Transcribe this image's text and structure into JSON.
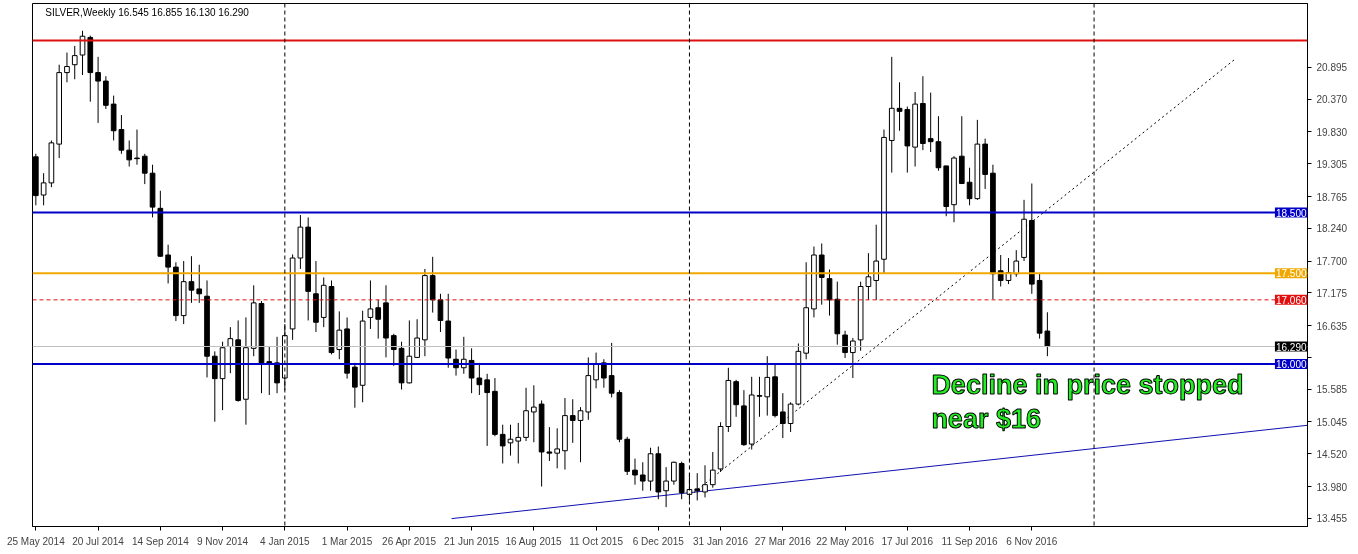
{
  "chart_data": {
    "type": "candlestick",
    "title": "SILVER,Weekly  16.545 16.855 16.130 16.290",
    "x": [
      "2014-05-25",
      "2014-06-01",
      "2014-06-08",
      "2014-06-15",
      "2014-06-22",
      "2014-06-29",
      "2014-07-06",
      "2014-07-13",
      "2014-07-20",
      "2014-07-27",
      "2014-08-03",
      "2014-08-10",
      "2014-08-17",
      "2014-08-24",
      "2014-08-31",
      "2014-09-07",
      "2014-09-14",
      "2014-09-21",
      "2014-09-28",
      "2014-10-05",
      "2014-10-12",
      "2014-10-19",
      "2014-10-26",
      "2014-11-02",
      "2014-11-09",
      "2014-11-16",
      "2014-11-23",
      "2014-11-30",
      "2014-12-07",
      "2014-12-14",
      "2014-12-21",
      "2014-12-28",
      "2015-01-04",
      "2015-01-11",
      "2015-01-18",
      "2015-01-25",
      "2015-02-01",
      "2015-02-08",
      "2015-02-15",
      "2015-02-22",
      "2015-03-01",
      "2015-03-08",
      "2015-03-15",
      "2015-03-22",
      "2015-03-29",
      "2015-04-05",
      "2015-04-12",
      "2015-04-19",
      "2015-04-26",
      "2015-05-03",
      "2015-05-10",
      "2015-05-17",
      "2015-05-24",
      "2015-05-31",
      "2015-06-07",
      "2015-06-14",
      "2015-06-21",
      "2015-06-28",
      "2015-07-05",
      "2015-07-12",
      "2015-07-19",
      "2015-07-26",
      "2015-08-02",
      "2015-08-09",
      "2015-08-16",
      "2015-08-23",
      "2015-08-30",
      "2015-09-06",
      "2015-09-13",
      "2015-09-20",
      "2015-09-27",
      "2015-10-04",
      "2015-10-11",
      "2015-10-18",
      "2015-10-25",
      "2015-11-01",
      "2015-11-08",
      "2015-11-15",
      "2015-11-22",
      "2015-11-29",
      "2015-12-06",
      "2015-12-13",
      "2015-12-20",
      "2015-12-27",
      "2016-01-03",
      "2016-01-10",
      "2016-01-17",
      "2016-01-24",
      "2016-01-31",
      "2016-02-07",
      "2016-02-14",
      "2016-02-21",
      "2016-02-28",
      "2016-03-06",
      "2016-03-13",
      "2016-03-20",
      "2016-03-27",
      "2016-04-03",
      "2016-04-10",
      "2016-04-17",
      "2016-04-24",
      "2016-05-01",
      "2016-05-08",
      "2016-05-15",
      "2016-05-22",
      "2016-05-29",
      "2016-06-05",
      "2016-06-12",
      "2016-06-19",
      "2016-06-26",
      "2016-07-03",
      "2016-07-10",
      "2016-07-17",
      "2016-07-24",
      "2016-07-31",
      "2016-08-07",
      "2016-08-14",
      "2016-08-21",
      "2016-08-28",
      "2016-09-04",
      "2016-09-11",
      "2016-09-18",
      "2016-09-25",
      "2016-10-02",
      "2016-10-09",
      "2016-10-16",
      "2016-10-23",
      "2016-10-30",
      "2016-11-06",
      "2016-11-13",
      "2016-11-20"
    ],
    "ohlc": [
      [
        19.42,
        19.47,
        18.62,
        18.78
      ],
      [
        18.79,
        19.15,
        18.62,
        18.99
      ],
      [
        18.99,
        19.69,
        18.92,
        19.65
      ],
      [
        19.63,
        20.94,
        19.4,
        20.81
      ],
      [
        20.81,
        21.14,
        20.65,
        20.91
      ],
      [
        20.94,
        21.25,
        20.7,
        21.09
      ],
      [
        21.1,
        21.5,
        20.77,
        21.41
      ],
      [
        21.39,
        21.42,
        20.33,
        20.81
      ],
      [
        20.81,
        21.07,
        19.98,
        20.67
      ],
      [
        20.67,
        20.75,
        20.21,
        20.27
      ],
      [
        20.29,
        20.43,
        19.69,
        19.85
      ],
      [
        19.87,
        20.11,
        19.47,
        19.53
      ],
      [
        19.53,
        19.69,
        19.26,
        19.37
      ],
      [
        19.4,
        19.87,
        19.29,
        19.39
      ],
      [
        19.43,
        19.47,
        18.97,
        19.15
      ],
      [
        19.15,
        19.29,
        18.42,
        18.59
      ],
      [
        18.57,
        18.86,
        17.77,
        17.78
      ],
      [
        17.8,
        17.97,
        17.33,
        17.6
      ],
      [
        17.6,
        17.68,
        16.71,
        16.8
      ],
      [
        16.8,
        17.7,
        16.66,
        17.36
      ],
      [
        17.36,
        17.78,
        17.01,
        17.22
      ],
      [
        17.24,
        17.64,
        17.01,
        17.16
      ],
      [
        17.12,
        17.38,
        15.78,
        16.13
      ],
      [
        16.13,
        16.21,
        15.05,
        15.76
      ],
      [
        15.76,
        16.37,
        15.24,
        16.27
      ],
      [
        16.29,
        16.61,
        15.85,
        16.42
      ],
      [
        16.4,
        16.72,
        15.38,
        15.4
      ],
      [
        15.42,
        16.77,
        15.0,
        16.27
      ],
      [
        16.26,
        17.3,
        16.13,
        17.01
      ],
      [
        17.0,
        17.04,
        15.52,
        16.02
      ],
      [
        16.04,
        16.29,
        15.49,
        16.02
      ],
      [
        16.02,
        16.45,
        15.52,
        15.69
      ],
      [
        15.77,
        16.66,
        15.57,
        16.47
      ],
      [
        16.58,
        17.81,
        16.4,
        17.75
      ],
      [
        17.75,
        18.46,
        17.57,
        18.26
      ],
      [
        18.26,
        18.42,
        16.72,
        17.2
      ],
      [
        17.16,
        17.7,
        16.53,
        16.69
      ],
      [
        16.77,
        17.43,
        16.61,
        17.3
      ],
      [
        17.28,
        17.38,
        16.16,
        16.19
      ],
      [
        16.24,
        16.87,
        16.08,
        16.56
      ],
      [
        16.58,
        16.77,
        15.76,
        15.85
      ],
      [
        15.95,
        16.02,
        15.28,
        15.62
      ],
      [
        15.65,
        16.88,
        15.37,
        16.71
      ],
      [
        16.77,
        17.38,
        16.58,
        16.91
      ],
      [
        16.93,
        17.06,
        16.42,
        16.74
      ],
      [
        17.01,
        17.3,
        16.11,
        16.43
      ],
      [
        16.47,
        16.5,
        15.97,
        16.24
      ],
      [
        16.26,
        16.37,
        15.58,
        15.69
      ],
      [
        15.69,
        16.72,
        15.68,
        16.13
      ],
      [
        16.11,
        16.74,
        16.1,
        16.43
      ],
      [
        16.4,
        17.57,
        16.13,
        17.46
      ],
      [
        17.46,
        17.77,
        16.85,
        17.06
      ],
      [
        17.06,
        17.16,
        16.53,
        16.72
      ],
      [
        16.71,
        17.16,
        15.94,
        16.1
      ],
      [
        16.08,
        16.24,
        15.81,
        15.94
      ],
      [
        15.94,
        16.45,
        15.84,
        16.08
      ],
      [
        16.06,
        16.26,
        15.52,
        15.77
      ],
      [
        15.77,
        16.02,
        15.49,
        15.66
      ],
      [
        15.74,
        15.84,
        14.65,
        15.53
      ],
      [
        15.55,
        15.77,
        14.81,
        14.84
      ],
      [
        14.84,
        15.0,
        14.36,
        14.65
      ],
      [
        14.7,
        15.0,
        14.49,
        14.76
      ],
      [
        14.73,
        15.03,
        14.36,
        14.79
      ],
      [
        14.79,
        15.61,
        14.73,
        15.23
      ],
      [
        15.21,
        15.65,
        14.71,
        15.29
      ],
      [
        15.34,
        15.4,
        13.98,
        14.55
      ],
      [
        14.55,
        14.96,
        14.4,
        14.53
      ],
      [
        14.53,
        14.94,
        14.28,
        14.6
      ],
      [
        14.57,
        15.44,
        14.26,
        15.15
      ],
      [
        15.15,
        15.42,
        14.7,
        15.07
      ],
      [
        15.07,
        15.29,
        14.38,
        15.23
      ],
      [
        15.21,
        16.11,
        15.08,
        15.81
      ],
      [
        15.74,
        16.19,
        15.6,
        16.0
      ],
      [
        16.02,
        16.08,
        15.61,
        15.77
      ],
      [
        15.81,
        16.35,
        15.45,
        15.52
      ],
      [
        15.53,
        15.57,
        14.71,
        14.76
      ],
      [
        14.76,
        14.8,
        14.17,
        14.23
      ],
      [
        14.25,
        14.44,
        14.01,
        14.17
      ],
      [
        14.17,
        14.38,
        13.91,
        14.07
      ],
      [
        14.07,
        14.62,
        13.91,
        14.52
      ],
      [
        14.52,
        14.64,
        13.77,
        13.89
      ],
      [
        13.91,
        14.3,
        13.64,
        14.07
      ],
      [
        14.07,
        14.39,
        14.01,
        14.38
      ],
      [
        14.36,
        14.39,
        13.77,
        13.88
      ],
      [
        13.85,
        14.2,
        13.75,
        13.93
      ],
      [
        13.94,
        14.2,
        13.75,
        13.91
      ],
      [
        13.89,
        14.33,
        13.8,
        14.01
      ],
      [
        14.01,
        14.55,
        13.96,
        14.25
      ],
      [
        14.27,
        15.04,
        14.22,
        14.97
      ],
      [
        14.97,
        15.94,
        14.88,
        15.73
      ],
      [
        15.71,
        15.74,
        15.13,
        15.33
      ],
      [
        15.31,
        15.57,
        14.65,
        14.67
      ],
      [
        14.68,
        15.79,
        14.59,
        15.49
      ],
      [
        15.48,
        15.79,
        15.13,
        15.47
      ],
      [
        15.46,
        16.13,
        15.15,
        15.78
      ],
      [
        15.79,
        16.0,
        15.12,
        15.15
      ],
      [
        15.21,
        15.52,
        14.78,
        15.02
      ],
      [
        15.02,
        15.37,
        14.88,
        15.34
      ],
      [
        15.34,
        16.34,
        15.32,
        16.21
      ],
      [
        16.18,
        17.68,
        16.08,
        16.93
      ],
      [
        16.91,
        17.94,
        16.77,
        17.8
      ],
      [
        17.8,
        17.99,
        16.98,
        17.43
      ],
      [
        17.41,
        17.56,
        16.8,
        17.06
      ],
      [
        17.07,
        17.36,
        16.32,
        16.5
      ],
      [
        16.48,
        16.55,
        16.1,
        16.19
      ],
      [
        16.19,
        16.43,
        15.77,
        16.38
      ],
      [
        16.4,
        17.36,
        16.22,
        17.28
      ],
      [
        17.28,
        17.83,
        17.06,
        17.44
      ],
      [
        17.38,
        18.3,
        17.06,
        17.7
      ],
      [
        17.73,
        19.87,
        17.49,
        19.74
      ],
      [
        19.69,
        21.07,
        19.16,
        20.22
      ],
      [
        20.22,
        20.65,
        19.85,
        20.17
      ],
      [
        20.2,
        20.25,
        19.16,
        19.6
      ],
      [
        19.58,
        20.49,
        19.26,
        20.29
      ],
      [
        20.3,
        20.75,
        19.53,
        19.64
      ],
      [
        19.72,
        20.48,
        19.5,
        19.67
      ],
      [
        19.67,
        20.09,
        19.19,
        19.24
      ],
      [
        19.27,
        19.27,
        18.44,
        18.6
      ],
      [
        18.63,
        19.43,
        18.34,
        19.4
      ],
      [
        19.43,
        20.09,
        18.97,
        18.98
      ],
      [
        19.0,
        19.24,
        18.62,
        18.73
      ],
      [
        18.73,
        20.03,
        18.71,
        19.63
      ],
      [
        19.63,
        19.72,
        18.89,
        19.13
      ],
      [
        19.15,
        19.29,
        17.07,
        17.49
      ],
      [
        17.54,
        17.8,
        17.28,
        17.38
      ],
      [
        17.38,
        17.75,
        17.32,
        17.51
      ],
      [
        17.49,
        17.88,
        17.44,
        17.7
      ],
      [
        17.76,
        18.71,
        17.7,
        18.39
      ],
      [
        18.37,
        18.98,
        17.16,
        17.32
      ],
      [
        17.38,
        17.49,
        16.42,
        16.51
      ],
      [
        16.545,
        16.855,
        16.13,
        16.29
      ]
    ],
    "series": [
      {
        "type": "line",
        "x": [
          "2015-06-03",
          "2017-07-12"
        ],
        "values": [
          13.45,
          14.99
        ],
        "color": "#1010b0",
        "line_style": "solid"
      },
      {
        "type": "line",
        "x": [
          "2016-01-07",
          "2017-05-07"
        ],
        "values": [
          13.88,
          21.02
        ],
        "color": "#000000",
        "line_style": "dotted"
      }
    ],
    "xlim": [
      "2014-05-22",
      "2017-07-12"
    ],
    "xticks": [
      {
        "value": "2014-05-25",
        "label": "25 May 2014"
      },
      {
        "value": "2014-07-20",
        "label": "20 Jul 2014"
      },
      {
        "value": "2014-09-14",
        "label": "14 Sep 2014"
      },
      {
        "value": "2014-11-09",
        "label": "9 Nov 2014"
      },
      {
        "value": "2015-01-04",
        "label": "4 Jan 2015"
      },
      {
        "value": "2015-03-01",
        "label": "1 Mar 2015"
      },
      {
        "value": "2015-04-26",
        "label": "26 Apr 2015"
      },
      {
        "value": "2015-06-21",
        "label": "21 Jun 2015"
      },
      {
        "value": "2015-08-16",
        "label": "16 Aug 2015"
      },
      {
        "value": "2015-10-11",
        "label": "11 Oct 2015"
      },
      {
        "value": "2015-12-06",
        "label": "6 Dec 2015"
      },
      {
        "value": "2016-01-31",
        "label": "31 Jan 2016"
      },
      {
        "value": "2016-03-27",
        "label": "27 Mar 2016"
      },
      {
        "value": "2016-05-22",
        "label": "22 May 2016"
      },
      {
        "value": "2016-07-17",
        "label": "17 Jul 2016"
      },
      {
        "value": "2016-09-11",
        "label": "11 Sep 2016"
      },
      {
        "value": "2016-11-06",
        "label": "6 Nov 2016"
      }
    ],
    "ylim": [
      13.32,
      21.95
    ],
    "yticks": [
      {
        "value": 20.895,
        "label": "20.895"
      },
      {
        "value": 20.37,
        "label": "20.370"
      },
      {
        "value": 19.83,
        "label": "19.830"
      },
      {
        "value": 19.305,
        "label": "19.305"
      },
      {
        "value": 18.765,
        "label": "18.765"
      },
      {
        "value": 18.24,
        "label": "18.240"
      },
      {
        "value": 17.7,
        "label": "17.700"
      },
      {
        "value": 17.175,
        "label": "17.175"
      },
      {
        "value": 16.635,
        "label": "16.635"
      },
      {
        "value": 16.11,
        "label": null
      },
      {
        "value": 15.585,
        "label": "15.585"
      },
      {
        "value": 15.045,
        "label": "15.045"
      },
      {
        "value": 14.52,
        "label": "14.520"
      },
      {
        "value": 13.98,
        "label": "13.980"
      },
      {
        "value": 13.455,
        "label": "13.455"
      }
    ],
    "ref_lines": [
      {
        "axis": "y",
        "value": 21.34,
        "label": null,
        "color": "#e01010",
        "line_style": "solid"
      },
      {
        "axis": "y",
        "value": 18.5,
        "label": "18.500",
        "color": "#0000c8",
        "line_style": "solid"
      },
      {
        "axis": "y",
        "value": 17.5,
        "label": "17.500",
        "color": "#f0a800",
        "line_style": "solid"
      },
      {
        "axis": "y",
        "value": 17.06,
        "label": "17.060",
        "color": "#e01010",
        "line_style": "dashed"
      },
      {
        "axis": "y",
        "value": 16.29,
        "label": "16.290",
        "color": "#c0c0c0",
        "line_style": "solid"
      },
      {
        "axis": "y",
        "value": 16.0,
        "label": "16.000",
        "color": "#0000c8",
        "line_style": "solid"
      },
      {
        "axis": "x",
        "value": "2015-01-04",
        "label": null,
        "color": "#000000",
        "line_style": "dashed"
      },
      {
        "axis": "x",
        "value": "2016-01-03",
        "label": null,
        "color": "#000000",
        "line_style": "dashed"
      },
      {
        "axis": "x",
        "value": "2017-01-01",
        "label": null,
        "color": "#000000",
        "line_style": "dashed"
      }
    ],
    "annotations": [
      "Decline in price stopped\nnear $16"
    ],
    "grid": false
  }
}
